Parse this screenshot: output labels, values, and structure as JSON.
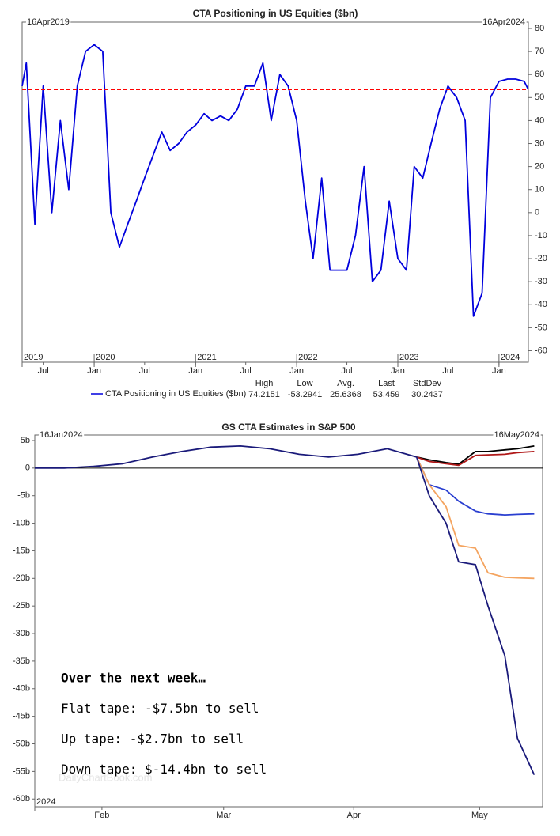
{
  "chart_data": [
    {
      "type": "line",
      "title": "CTA Positioning in US Equities ($bn)",
      "start_label": "16Apr2019",
      "end_label": "16Apr2024",
      "xlim": [
        "2019-04-16",
        "2024-04-16"
      ],
      "xticks": [
        {
          "value": "2019-07",
          "label": "Jul"
        },
        {
          "value": "2020-01",
          "label": "Jan"
        },
        {
          "value": "2020-07",
          "label": "Jul"
        },
        {
          "value": "2021-01",
          "label": "Jan"
        },
        {
          "value": "2021-07",
          "label": "Jul"
        },
        {
          "value": "2022-01",
          "label": "Jan"
        },
        {
          "value": "2022-07",
          "label": "Jul"
        },
        {
          "value": "2023-01",
          "label": "Jan"
        },
        {
          "value": "2023-07",
          "label": "Jul"
        },
        {
          "value": "2024-01",
          "label": "Jan"
        }
      ],
      "year_labels": [
        {
          "value": "2019-04-16",
          "label": "2019"
        },
        {
          "value": "2020-01",
          "label": "2020"
        },
        {
          "value": "2021-01",
          "label": "2021"
        },
        {
          "value": "2022-01",
          "label": "2022"
        },
        {
          "value": "2023-01",
          "label": "2023"
        },
        {
          "value": "2024-01",
          "label": "2024"
        }
      ],
      "ylim": [
        -65,
        82.75
      ],
      "yticks": [
        80,
        70,
        60,
        50,
        40,
        30,
        20,
        10,
        0,
        -10,
        -20,
        -30,
        -40,
        -50,
        -60
      ],
      "y_axis_side": "right",
      "x": [
        "2019-04-16",
        "2019-05",
        "2019-06",
        "2019-07",
        "2019-08",
        "2019-09",
        "2019-10",
        "2019-11",
        "2019-12",
        "2020-01",
        "2020-02",
        "2020-03",
        "2020-04",
        "2020-05",
        "2020-06",
        "2020-07",
        "2020-08",
        "2020-09",
        "2020-10",
        "2020-11",
        "2020-12",
        "2021-01",
        "2021-02",
        "2021-03",
        "2021-04",
        "2021-05",
        "2021-06",
        "2021-07",
        "2021-08",
        "2021-09",
        "2021-10",
        "2021-11",
        "2021-12",
        "2022-01",
        "2022-02",
        "2022-03",
        "2022-04",
        "2022-05",
        "2022-06",
        "2022-07",
        "2022-08",
        "2022-09",
        "2022-10",
        "2022-11",
        "2022-12",
        "2023-01",
        "2023-02",
        "2023-03",
        "2023-04",
        "2023-05",
        "2023-06",
        "2023-07",
        "2023-08",
        "2023-09",
        "2023-10",
        "2023-11",
        "2023-12",
        "2024-01",
        "2024-02",
        "2024-03",
        "2024-04",
        "2024-04-16"
      ],
      "series": [
        {
          "name": "CTA Positioning in US Equities ($bn)",
          "color": "#0000dd",
          "values": [
            55,
            65,
            -5,
            55,
            0,
            40,
            10,
            55,
            70,
            73,
            70,
            0,
            -15,
            -5,
            5,
            15,
            25,
            35,
            27,
            30,
            35,
            38,
            43,
            40,
            42,
            40,
            45,
            55,
            55,
            65,
            40,
            60,
            55,
            40,
            5,
            -20,
            15,
            -25,
            -25,
            -25,
            -10,
            20,
            -30,
            -25,
            5,
            -20,
            -25,
            20,
            15,
            30,
            45,
            55,
            50,
            40,
            -45,
            -35,
            50,
            57,
            58,
            58,
            57,
            53.459
          ]
        }
      ],
      "reference_line": {
        "value": 53.459,
        "color": "#ff0000"
      },
      "stats": [
        {
          "label": "High",
          "value": 74.2151
        },
        {
          "label": "Low",
          "value": -53.2941
        },
        {
          "label": "Avg.",
          "value": 25.6368
        },
        {
          "label": "Last",
          "value": 53.459
        },
        {
          "label": "StdDev",
          "value": 30.2437
        }
      ]
    },
    {
      "type": "line",
      "title": "GS CTA Estimates in S&P 500",
      "start_label": "16Jan2024",
      "end_label": "16May2024",
      "xlim": [
        "2024-01-16",
        "2024-05-16"
      ],
      "xticks": [
        {
          "value": "2024-02-01",
          "label": "Feb"
        },
        {
          "value": "2024-03-01",
          "label": "Mar"
        },
        {
          "value": "2024-04-01",
          "label": "Apr"
        },
        {
          "value": "2024-05-01",
          "label": "May"
        }
      ],
      "year_labels": [
        {
          "value": "2024-01-16",
          "label": "2024"
        }
      ],
      "ylim": [
        -61.4,
        6
      ],
      "yticks": [
        {
          "value": 5,
          "label": "5b"
        },
        0,
        {
          "value": -5,
          "label": "-5b"
        },
        {
          "value": -10,
          "label": "-10b"
        },
        {
          "value": -15,
          "label": "-15b"
        },
        {
          "value": -20,
          "label": "-20b"
        },
        {
          "value": -25,
          "label": "-25b"
        },
        {
          "value": -30,
          "label": "-30b"
        },
        {
          "value": -35,
          "label": "-35b"
        },
        {
          "value": -40,
          "label": "-40b"
        },
        {
          "value": -45,
          "label": "-45b"
        },
        {
          "value": -50,
          "label": "-50b"
        },
        {
          "value": -55,
          "label": "-55b"
        },
        {
          "value": -60,
          "label": "-60b"
        }
      ],
      "y_axis_side": "left",
      "zero_line": true,
      "x": [
        "2024-01-16",
        "2024-01-23",
        "2024-01-30",
        "2024-02-06",
        "2024-02-13",
        "2024-02-20",
        "2024-02-27",
        "2024-03-05",
        "2024-03-12",
        "2024-03-19",
        "2024-03-26",
        "2024-04-02",
        "2024-04-09",
        "2024-04-16",
        "2024-04-19",
        "2024-04-23",
        "2024-04-26",
        "2024-04-30",
        "2024-05-03",
        "2024-05-07",
        "2024-05-10",
        "2024-05-14"
      ],
      "series": [
        {
          "color": "#1a1a7a",
          "values": [
            0,
            0,
            0.3,
            0.8,
            2,
            3,
            3.8,
            4,
            3.5,
            2.5,
            2,
            2.5,
            3.5,
            2,
            null,
            null,
            null,
            null,
            null,
            null,
            null,
            null
          ]
        },
        {
          "color": "#000000",
          "values": [
            null,
            null,
            null,
            null,
            null,
            null,
            null,
            null,
            null,
            null,
            null,
            null,
            null,
            2,
            1.5,
            1,
            0.7,
            3,
            3,
            3.3,
            3.5,
            4
          ]
        },
        {
          "color": "#b01818",
          "values": [
            null,
            null,
            null,
            null,
            null,
            null,
            null,
            null,
            null,
            null,
            null,
            null,
            null,
            2,
            1.2,
            0.8,
            0.5,
            2.3,
            2.4,
            2.5,
            2.8,
            3
          ]
        },
        {
          "color": "#2a3fd0",
          "values": [
            null,
            null,
            null,
            null,
            null,
            null,
            null,
            null,
            null,
            null,
            null,
            null,
            null,
            2,
            -3,
            -4,
            -6,
            -7.8,
            -8.3,
            -8.5,
            -8.4,
            -8.3
          ]
        },
        {
          "color": "#f4a460",
          "values": [
            null,
            null,
            null,
            null,
            null,
            null,
            null,
            null,
            null,
            null,
            null,
            null,
            null,
            2,
            -3,
            -7,
            -14,
            -14.5,
            -19,
            -19.8,
            -19.9,
            -20
          ]
        },
        {
          "color": "#1a1a7a",
          "values": [
            null,
            null,
            null,
            null,
            null,
            null,
            null,
            null,
            null,
            null,
            null,
            null,
            null,
            2,
            -5,
            -10,
            -17,
            -17.5,
            -25,
            -34,
            -49,
            -55.6
          ]
        }
      ],
      "watermark": "DailyChartBook.com",
      "annotations": [
        "Over the next week…",
        "Flat tape: -$7.5bn to sell",
        "Up tape: -$2.7bn to sell",
        "Down tape: $-14.4bn to sell"
      ]
    }
  ]
}
